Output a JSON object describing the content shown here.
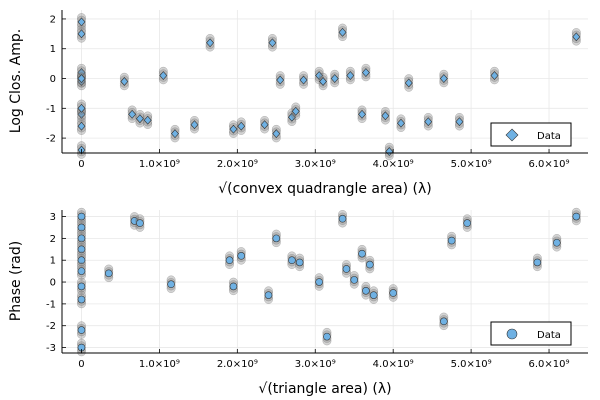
{
  "chart_data": [
    {
      "type": "scatter",
      "xlabel": "√(convex quadrangle area) (λ)",
      "ylabel": "Log Clos. Amp.",
      "xlim": [
        -250000000.0,
        6500000000.0
      ],
      "ylim": [
        -2.5,
        2.3
      ],
      "xticks": [
        0,
        1000000000.0,
        2000000000.0,
        3000000000.0,
        4000000000.0,
        5000000000.0,
        6000000000.0
      ],
      "xtick_labels": [
        "0",
        "1.0×10⁹",
        "2.0×10⁹",
        "3.0×10⁹",
        "4.0×10⁹",
        "5.0×10⁹",
        "6.0×10⁹"
      ],
      "yticks": [
        -2,
        -1,
        0,
        1,
        2
      ],
      "ytick_labels": [
        "-2",
        "-1",
        "0",
        "1",
        "2"
      ],
      "grid": true,
      "legend": {
        "placement": "bottom-right",
        "label": "Data",
        "marker": "diamond"
      },
      "data_color": "#6fb1e3",
      "background_color": "#808080",
      "series": [
        {
          "name": "Data",
          "x": [
            0,
            0,
            0,
            0,
            0,
            0,
            0,
            0,
            0,
            550000000.0,
            650000000.0,
            750000000.0,
            850000000.0,
            1050000000.0,
            1200000000.0,
            1450000000.0,
            1650000000.0,
            1950000000.0,
            2050000000.0,
            2350000000.0,
            2450000000.0,
            2500000000.0,
            2550000000.0,
            2700000000.0,
            2750000000.0,
            2850000000.0,
            3050000000.0,
            3100000000.0,
            3250000000.0,
            3350000000.0,
            3450000000.0,
            3600000000.0,
            3650000000.0,
            3900000000.0,
            3950000000.0,
            4100000000.0,
            4200000000.0,
            4450000000.0,
            4650000000.0,
            4850000000.0,
            5300000000.0,
            6350000000.0
          ],
          "y": [
            1.9,
            1.5,
            0.2,
            -0.1,
            -1.2,
            -1.6,
            -2.4,
            0.0,
            -1.0,
            -0.1,
            -1.2,
            -1.35,
            -1.4,
            0.1,
            -1.85,
            -1.55,
            1.2,
            -1.7,
            -1.6,
            -1.55,
            1.2,
            -1.85,
            -0.05,
            -1.3,
            -1.1,
            -0.05,
            0.1,
            -0.1,
            0.0,
            1.55,
            0.1,
            -1.2,
            0.2,
            -1.25,
            -2.45,
            -1.5,
            -0.15,
            -1.45,
            0.0,
            -1.45,
            0.1,
            1.4
          ]
        }
      ]
    },
    {
      "type": "scatter",
      "xlabel": "√(triangle area) (λ)",
      "ylabel": "Phase (rad)",
      "xlim": [
        -250000000.0,
        6500000000.0
      ],
      "ylim": [
        -3.25,
        3.3
      ],
      "xticks": [
        0,
        1000000000.0,
        2000000000.0,
        3000000000.0,
        4000000000.0,
        5000000000.0,
        6000000000.0
      ],
      "xtick_labels": [
        "0",
        "1.0×10⁹",
        "2.0×10⁹",
        "3.0×10⁹",
        "4.0×10⁹",
        "5.0×10⁹",
        "6.0×10⁹"
      ],
      "yticks": [
        -3,
        -2,
        -1,
        0,
        1,
        2,
        3
      ],
      "ytick_labels": [
        "-3",
        "-2",
        "-1",
        "0",
        "1",
        "2",
        "3"
      ],
      "grid": true,
      "legend": {
        "placement": "bottom-right",
        "label": "Data",
        "marker": "circle"
      },
      "data_color": "#6fb1e3",
      "background_color": "#808080",
      "series": [
        {
          "name": "Data",
          "x": [
            0,
            0,
            0,
            0,
            0,
            0,
            0,
            0,
            0,
            0,
            350000000.0,
            680000000.0,
            750000000.0,
            1150000000.0,
            1900000000.0,
            1950000000.0,
            2050000000.0,
            2400000000.0,
            2500000000.0,
            2700000000.0,
            2800000000.0,
            3050000000.0,
            3150000000.0,
            3350000000.0,
            3400000000.0,
            3500000000.0,
            3600000000.0,
            3650000000.0,
            3700000000.0,
            3750000000.0,
            4000000000.0,
            4650000000.0,
            4750000000.0,
            4950000000.0,
            5850000000.0,
            6100000000.0,
            6350000000.0
          ],
          "y": [
            3.0,
            2.5,
            2.0,
            1.5,
            1.0,
            0.5,
            -0.2,
            -0.8,
            -2.2,
            -3.0,
            0.4,
            2.8,
            2.7,
            -0.1,
            1.0,
            -0.2,
            1.2,
            -0.6,
            2.0,
            1.0,
            0.9,
            0.0,
            -2.5,
            2.9,
            0.6,
            0.1,
            1.3,
            -0.4,
            0.8,
            -0.6,
            -0.5,
            -1.8,
            1.9,
            2.7,
            0.9,
            1.8,
            3.0
          ]
        }
      ]
    }
  ]
}
